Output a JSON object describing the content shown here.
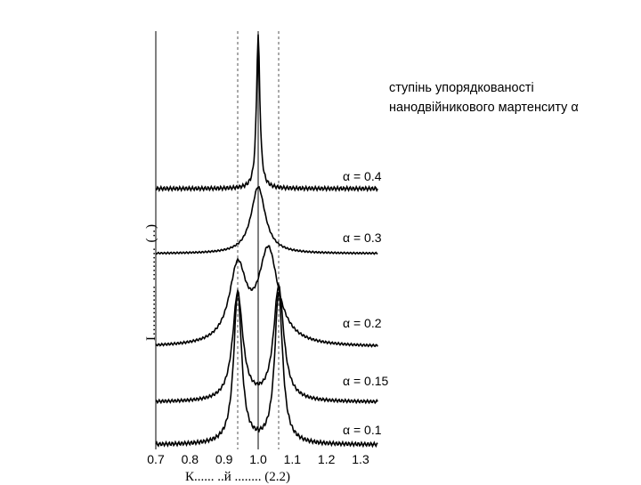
{
  "chart_data": {
    "type": "line",
    "xlim": [
      0.7,
      1.35
    ],
    "x_ticks": [
      "0.7",
      "0.8",
      "0.9",
      "1.0",
      "1.1",
      "1.2",
      "1.3"
    ],
    "x_tick_values": [
      0.7,
      0.8,
      0.9,
      1.0,
      1.1,
      1.2,
      1.3
    ],
    "vlines_solid": [
      0.7,
      1.0
    ],
    "vlines_dashed": [
      0.94,
      1.06
    ],
    "xlabel": "К...... ..й ........ (2.2)",
    "ylabel": "І............ ........ (..)",
    "annotation": [
      "ступінь упорядкованості",
      "нанодвійникового мартенситу α"
    ],
    "series": [
      {
        "name": "α = 0.1",
        "peaks": [
          {
            "x": 0.94,
            "h": 1.0,
            "w": 0.014
          },
          {
            "x": 1.06,
            "h": 1.0,
            "w": 0.014
          }
        ],
        "baseline": 0.0
      },
      {
        "name": "α = 0.15",
        "peaks": [
          {
            "x": 0.94,
            "h": 0.9,
            "w": 0.018
          },
          {
            "x": 1.06,
            "h": 0.95,
            "w": 0.018
          }
        ],
        "baseline": 0.0
      },
      {
        "name": "α = 0.2",
        "peaks": [
          {
            "x": 0.94,
            "h": 0.8,
            "w": 0.03
          },
          {
            "x": 1.03,
            "h": 1.0,
            "w": 0.035
          }
        ],
        "baseline": 0.0
      },
      {
        "name": "α = 0.3",
        "peaks": [
          {
            "x": 1.0,
            "h": 1.0,
            "w": 0.025
          }
        ],
        "baseline": 0.0
      },
      {
        "name": "α = 0.4",
        "peaks": [
          {
            "x": 1.0,
            "h": 1.0,
            "w": 0.006
          }
        ],
        "baseline": 0.0
      }
    ]
  },
  "colors": {
    "line": "#000000",
    "dashed": "#555555"
  }
}
